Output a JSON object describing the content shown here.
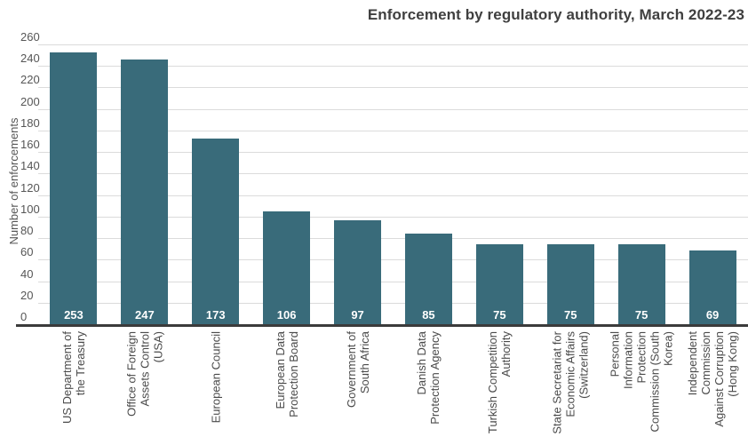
{
  "chart_data": {
    "type": "bar",
    "title": "Enforcement by regulatory authority, March 2022-23",
    "xlabel": "",
    "ylabel": "Number of enforcements",
    "ylim": [
      0,
      260
    ],
    "ytick_step": 20,
    "ytick_labels": [
      "0",
      "20",
      "40",
      "60",
      "80",
      "100",
      "120",
      "140",
      "160",
      "180",
      "200",
      "220",
      "240",
      "260"
    ],
    "grid": "horizontal",
    "legend_position": "none",
    "value_labels_position": "inside-bottom",
    "categories": [
      "US Department of the Treasury",
      "Office of Foreign Assets Control (USA)",
      "European Council",
      "European Data Protection Board",
      "Government of South Africa",
      "Danish Data Protection Agency",
      "Turkish Competition Authority",
      "State Secretariat for Economic Affairs (Switzerland)",
      "Personal Information Protection Commission (South Korea)",
      "Independent Commission Against Corruption (Hong Kong)"
    ],
    "category_label_lines": [
      [
        "US Department of",
        "the Treasury"
      ],
      [
        "Office of Foreign",
        "Assets Control",
        "(USA)"
      ],
      [
        "European Council"
      ],
      [
        "European Data",
        "Protection Board"
      ],
      [
        "Government of",
        "South Africa"
      ],
      [
        "Danish Data",
        "Protection Agency"
      ],
      [
        "Turkish Competition",
        "Authority"
      ],
      [
        "State Secretariat for",
        "Economic Affairs",
        "(Switzerland)"
      ],
      [
        "Personal",
        "Information",
        "Protection",
        "Commission (South",
        "Korea)"
      ],
      [
        "Independent",
        "Commission",
        "Against Corruption",
        "(Hong Kong)"
      ]
    ],
    "values": [
      253,
      247,
      173,
      106,
      97,
      85,
      75,
      75,
      75,
      69
    ]
  },
  "colors": {
    "bar": "#396B7A",
    "gridline": "#DBDBDB",
    "axis_line": "#3B3B3B",
    "title_text": "#3F3F3F",
    "tick_text": "#565656",
    "category_text": "#4A4A4A",
    "value_label_text": "#FFFFFF",
    "background": "#FFFFFF"
  }
}
